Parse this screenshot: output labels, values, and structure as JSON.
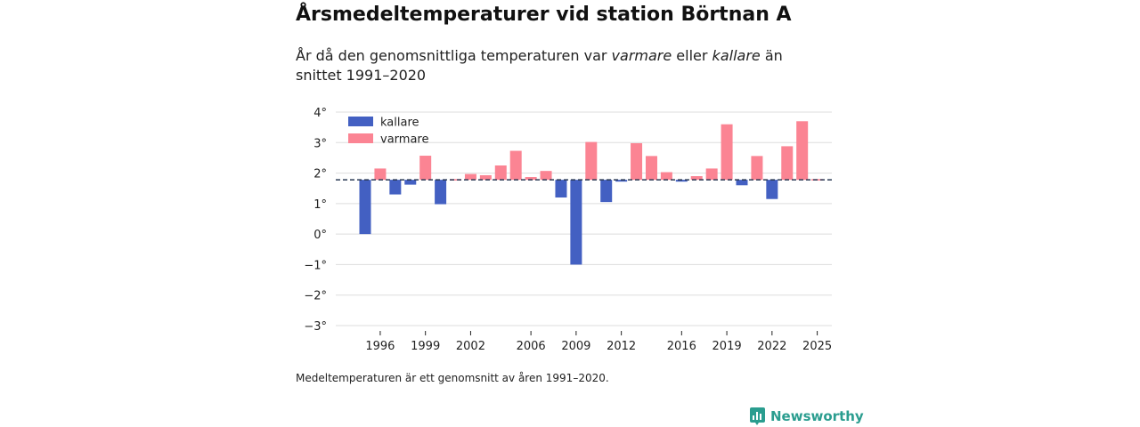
{
  "title": "Årsmedeltemperaturer vid station Börtnan A",
  "subtitle": {
    "part1": "År då den genomsnittliga temperaturen var ",
    "em1": "varmare",
    "part2": " eller ",
    "em2": "kallare",
    "part3": " än snittet 1991–2020"
  },
  "footnote": "Medeltemperaturen är ett genomsnitt av åren 1991–2020.",
  "brand": "Newsworthy",
  "colors": {
    "kallare": "#4360c2",
    "varmare": "#fb8493",
    "baseline": "#2b3a55",
    "grid": "#dddddd"
  },
  "chart_data": {
    "type": "bar",
    "title": "Årsmedeltemperaturer vid station Börtnan A",
    "baseline": 1.78,
    "baseline_style": "dashed",
    "x": [
      1995,
      1996,
      1997,
      1998,
      1999,
      2000,
      2001,
      2002,
      2003,
      2004,
      2005,
      2006,
      2007,
      2008,
      2009,
      2010,
      2011,
      2012,
      2013,
      2014,
      2015,
      2016,
      2017,
      2018,
      2019,
      2020,
      2021,
      2022,
      2023,
      2024,
      2025
    ],
    "values": [
      0.0,
      2.15,
      1.3,
      1.62,
      2.57,
      0.98,
      1.78,
      1.97,
      1.93,
      2.25,
      2.73,
      1.87,
      2.07,
      1.2,
      -1.0,
      3.02,
      1.05,
      1.72,
      2.98,
      2.56,
      2.03,
      1.72,
      1.9,
      2.15,
      3.6,
      1.6,
      2.56,
      1.15,
      2.88,
      3.7,
      1.78
    ],
    "legend": [
      {
        "name": "kallare"
      },
      {
        "name": "varmare"
      }
    ],
    "legend_position": "top-left",
    "ylim": [
      -3,
      4
    ],
    "yticks": [
      4,
      3,
      2,
      1,
      0,
      -1,
      -2,
      -3
    ],
    "ytick_labels": [
      "4°",
      "3°",
      "2°",
      "1°",
      "0°",
      "−1°",
      "−2°",
      "−3°"
    ],
    "xticks": [
      1996,
      1999,
      2002,
      2006,
      2009,
      2012,
      2016,
      2019,
      2022,
      2025
    ],
    "xtick_labels": [
      "1996",
      "1999",
      "2002",
      "2006",
      "2009",
      "2012",
      "2016",
      "2019",
      "2022",
      "2025"
    ],
    "xlabel": "",
    "ylabel": "",
    "grid": true
  }
}
